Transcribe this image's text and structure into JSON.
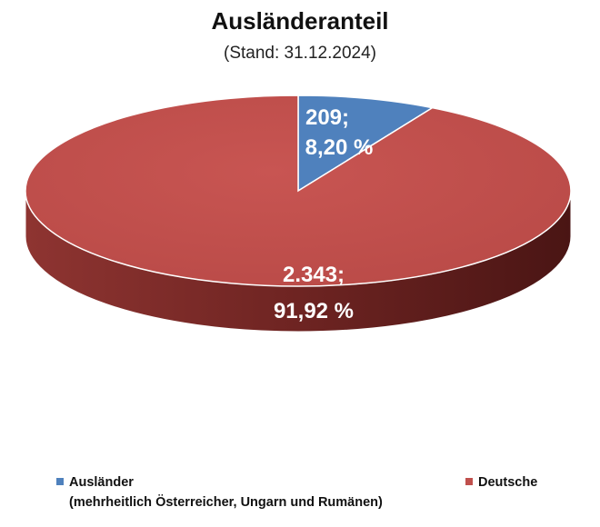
{
  "title": "Ausländeranteil",
  "subtitle": "(Stand: 31.12.2024)",
  "chart_data": {
    "type": "pie",
    "title": "Ausländeranteil",
    "subtitle": "(Stand: 31.12.2024)",
    "series": [
      {
        "name": "Ausländer",
        "legend_note": "(mehrheitlich Österreicher, Ungarn und Rumänen)",
        "value": 209,
        "percent": 8.2,
        "label_line1": "209;",
        "label_line2": "8,20 %",
        "color": "#4f81bd"
      },
      {
        "name": "Deutsche",
        "value": 2343,
        "percent": 91.92,
        "label_line1": "2.343;",
        "label_line2": "91,92 %",
        "color": "#c0504d"
      }
    ],
    "legend_position": "bottom",
    "style": "3d-pie"
  }
}
